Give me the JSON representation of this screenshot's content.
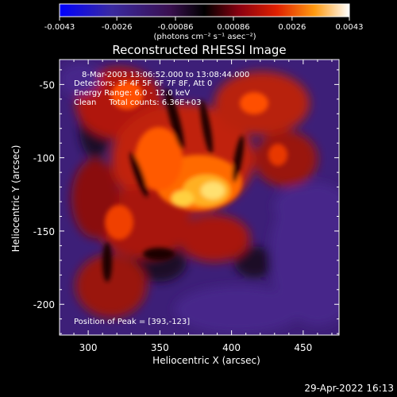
{
  "chart_data": {
    "type": "heatmap",
    "title": "Reconstructed RHESSI Image",
    "xlabel": "Heliocentric X (arcsec)",
    "ylabel": "Heliocentric Y (arcsec)",
    "xlim": [
      280,
      475
    ],
    "ylim": [
      -221,
      -33
    ],
    "x_ticks": [
      300,
      350,
      400,
      450
    ],
    "y_ticks": [
      -50,
      -100,
      -150,
      -200
    ],
    "colorbar": {
      "range": [
        -0.0043,
        0.0043
      ],
      "ticks": [
        "-0.0043",
        "-0.0026",
        "-0.00086",
        "0.00086",
        "0.0026",
        "0.0043"
      ],
      "unit_label": "(photons cm⁻² s⁻¹ asec⁻²)",
      "colors": [
        "#0000ff",
        "#4b2a96",
        "#000000",
        "#b01010",
        "#ff5a00",
        "#ffd040",
        "#ffffff"
      ]
    },
    "annotations": [
      "8-Mar-2003 13:06:52.000 to 13:08:44.000",
      "Detectors: 3F 4F 5F 6F 7F 8F, Att 0",
      "Energy Range: 6.0 - 12.0 keV",
      "Clean     Total counts: 6.36E+03"
    ],
    "peak_label": "Position of Peak = [393,-123]",
    "peak_position": [
      393,
      -123
    ]
  },
  "timestamp": "29-Apr-2022 16:13"
}
